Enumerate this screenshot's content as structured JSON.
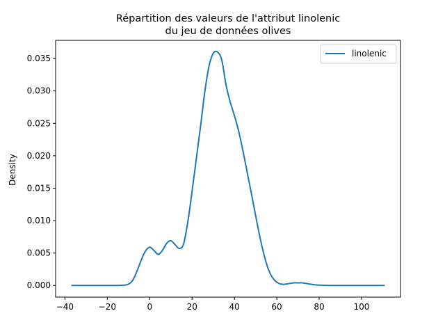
{
  "chart_data": {
    "type": "line",
    "title_line1": "Répartition des valeurs de l'attribut linolenic",
    "title_line2": "du jeu de données olives",
    "xlabel": "",
    "ylabel": "Density",
    "xlim": [
      -44.4,
      118.4
    ],
    "ylim": [
      -0.0018,
      0.0378
    ],
    "x_ticks": [
      -40,
      -20,
      0,
      20,
      40,
      60,
      80,
      100
    ],
    "x_tick_labels": [
      "−40",
      "−20",
      "0",
      "20",
      "40",
      "60",
      "80",
      "100"
    ],
    "y_ticks": [
      0.0,
      0.005,
      0.01,
      0.015,
      0.02,
      0.025,
      0.03,
      0.035
    ],
    "y_tick_labels": [
      "0.000",
      "0.005",
      "0.010",
      "0.015",
      "0.020",
      "0.025",
      "0.030",
      "0.035"
    ],
    "grid": false,
    "legend": {
      "position": "top-right",
      "entries": [
        "linolenic"
      ]
    },
    "series": [
      {
        "name": "linolenic",
        "color": "#1f77b4",
        "x": [
          -37,
          -30,
          -20,
          -15,
          -12,
          -10,
          -8,
          -6,
          -4,
          -2,
          0,
          2,
          4,
          6,
          8,
          10,
          12,
          14,
          16,
          18,
          20,
          22,
          24,
          26,
          28,
          30,
          32,
          34,
          36,
          38,
          40,
          42,
          44,
          46,
          48,
          50,
          52,
          54,
          56,
          58,
          60,
          62,
          64,
          66,
          68,
          70,
          72,
          74,
          76,
          78,
          80,
          85,
          90,
          100,
          111
        ],
        "y": [
          0.0,
          0.0,
          0.0,
          0.0,
          5e-05,
          0.0002,
          0.0008,
          0.0022,
          0.0039,
          0.0053,
          0.0059,
          0.0054,
          0.0048,
          0.0054,
          0.0065,
          0.0069,
          0.0063,
          0.0057,
          0.0064,
          0.0098,
          0.0145,
          0.0195,
          0.0245,
          0.0298,
          0.0338,
          0.0358,
          0.036,
          0.0348,
          0.031,
          0.0283,
          0.0262,
          0.0238,
          0.0208,
          0.0175,
          0.0142,
          0.0108,
          0.0075,
          0.0047,
          0.0025,
          0.0012,
          0.0005,
          0.0002,
          0.0002,
          0.0003,
          0.0004,
          0.0004,
          0.0004,
          0.0003,
          0.0002,
          0.0001,
          5e-05,
          0.0,
          0.0,
          0.0,
          0.0
        ]
      }
    ]
  }
}
